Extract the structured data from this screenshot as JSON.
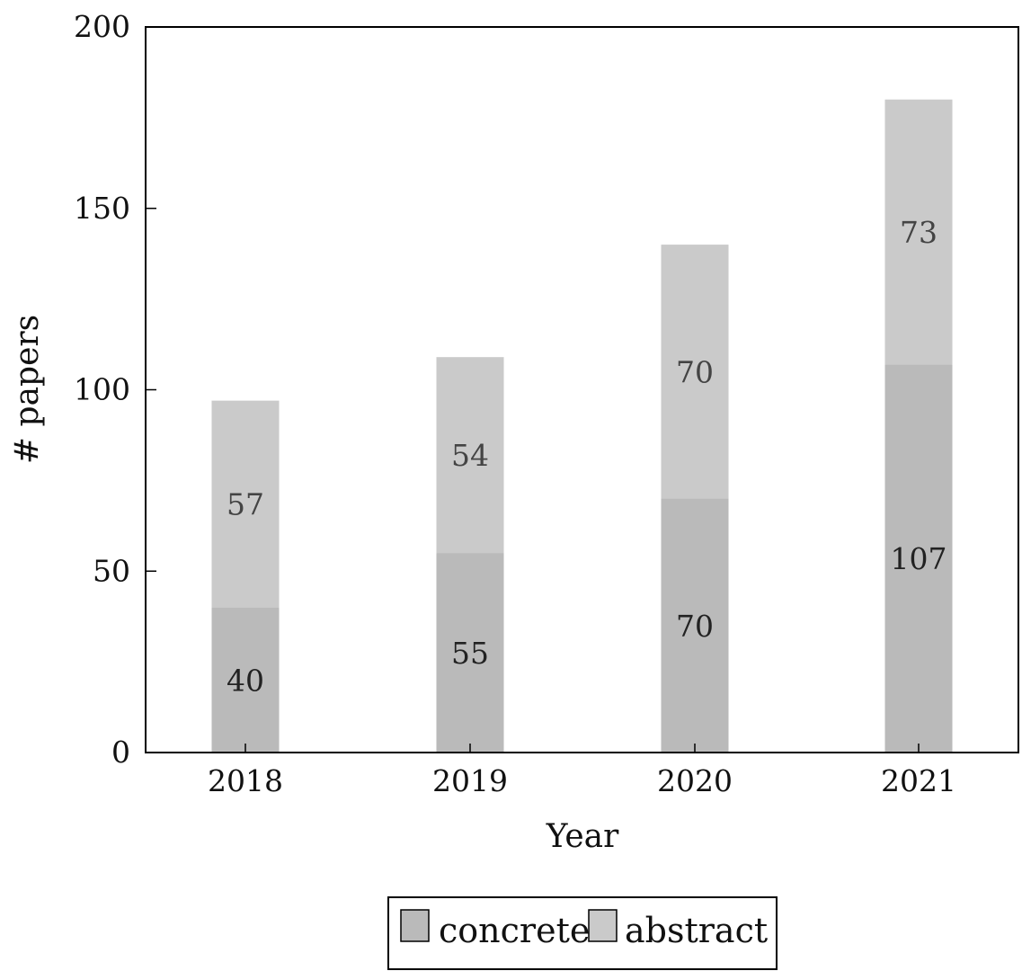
{
  "chart_data": {
    "type": "bar",
    "stacked": true,
    "categories": [
      "2018",
      "2019",
      "2020",
      "2021"
    ],
    "series": [
      {
        "name": "concrete",
        "values": [
          40,
          55,
          70,
          107
        ],
        "color": "#bababa",
        "label_color": "#222222"
      },
      {
        "name": "abstract",
        "values": [
          57,
          54,
          70,
          73
        ],
        "color": "#cacaca",
        "label_color": "#444444"
      }
    ],
    "title": "",
    "xlabel": "Year",
    "ylabel": "# papers",
    "ylim": [
      0,
      200
    ],
    "yticks": [
      "0",
      "50",
      "100",
      "150",
      "200"
    ],
    "grid": false,
    "legend": {
      "position": "bottom-center",
      "entries": [
        "concrete",
        "abstract"
      ]
    }
  }
}
